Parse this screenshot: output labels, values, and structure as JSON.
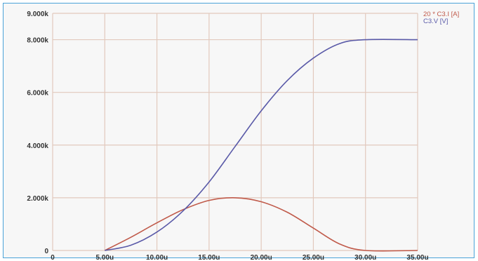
{
  "chart_data": {
    "type": "line",
    "title": "",
    "xlabel": "",
    "ylabel": "",
    "xlim": [
      0,
      35
    ],
    "ylim": [
      0,
      9
    ],
    "x_ticks": [
      0,
      5,
      10,
      15,
      20,
      25,
      30,
      35
    ],
    "x_tick_labels": [
      "0",
      "5.00u",
      "10.00u",
      "15.00u",
      "20.00u",
      "25.00u",
      "30.00u",
      "35.00u"
    ],
    "y_ticks": [
      0,
      2,
      4,
      6,
      8,
      9
    ],
    "y_tick_labels": [
      "0",
      "2.000k",
      "4.000k",
      "6.000k",
      "8.000k",
      "9.000k"
    ],
    "grid": true,
    "legend_position": "top-right",
    "series": [
      {
        "name": "20 * C3.I [A]",
        "color": "#c05a4a",
        "x": [
          5,
          7.5,
          10,
          12.5,
          15,
          17.5,
          20,
          22.5,
          25,
          27.5,
          30,
          35
        ],
        "y": [
          0,
          0.5,
          1.05,
          1.55,
          1.9,
          2.0,
          1.85,
          1.45,
          0.85,
          0.25,
          0,
          0
        ]
      },
      {
        "name": "C3.V [V]",
        "color": "#5a5aa8",
        "x": [
          5,
          7.5,
          10,
          12.5,
          15,
          17.5,
          20,
          22.5,
          25,
          27.5,
          30,
          35
        ],
        "y": [
          0,
          0.2,
          0.7,
          1.5,
          2.6,
          3.95,
          5.3,
          6.45,
          7.3,
          7.85,
          8.0,
          8.0
        ]
      }
    ]
  }
}
